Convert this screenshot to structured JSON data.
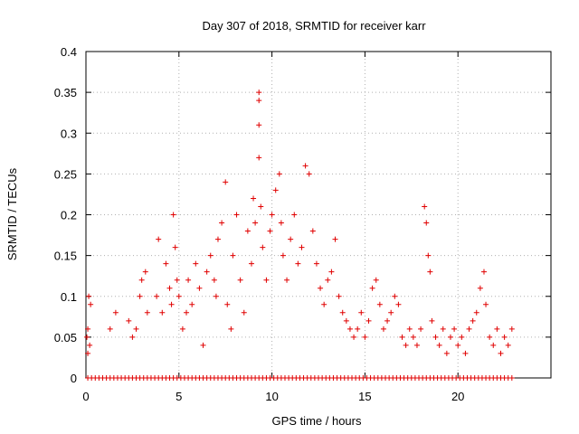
{
  "chart_data": {
    "type": "scatter",
    "title": "Day 307 of 2018, SRMTID for receiver karr",
    "xlabel": "GPS time / hours",
    "ylabel": "SRMTID / TECUs",
    "xlim": [
      0,
      25
    ],
    "ylim": [
      0,
      0.4
    ],
    "x_ticks": [
      0,
      5,
      10,
      15,
      20
    ],
    "x_tick_labels": [
      "0",
      "5",
      "10",
      "15",
      "20"
    ],
    "y_ticks": [
      0,
      0.05,
      0.1,
      0.15,
      0.2,
      0.25,
      0.3,
      0.35,
      0.4
    ],
    "y_tick_labels": [
      "0",
      "0.05",
      "0.1",
      "0.15",
      "0.2",
      "0.25",
      "0.3",
      "0.35",
      "0.4"
    ],
    "grid": true,
    "marker": "+",
    "color": "#e00000",
    "series": [
      {
        "name": "SRMTID",
        "points": [
          [
            0.05,
            0.05
          ],
          [
            0.1,
            0.06
          ],
          [
            0.15,
            0.1
          ],
          [
            0.2,
            0.04
          ],
          [
            0.25,
            0.09
          ],
          [
            0.1,
            0.03
          ],
          [
            1.3,
            0.06
          ],
          [
            1.6,
            0.08
          ],
          [
            2.3,
            0.07
          ],
          [
            2.5,
            0.05
          ],
          [
            2.7,
            0.06
          ],
          [
            2.9,
            0.1
          ],
          [
            3.0,
            0.12
          ],
          [
            3.2,
            0.13
          ],
          [
            3.3,
            0.08
          ],
          [
            3.8,
            0.1
          ],
          [
            3.9,
            0.17
          ],
          [
            4.1,
            0.08
          ],
          [
            4.3,
            0.14
          ],
          [
            4.5,
            0.11
          ],
          [
            4.6,
            0.09
          ],
          [
            4.7,
            0.2
          ],
          [
            4.8,
            0.16
          ],
          [
            4.9,
            0.12
          ],
          [
            5.0,
            0.1
          ],
          [
            5.2,
            0.06
          ],
          [
            5.4,
            0.08
          ],
          [
            5.5,
            0.12
          ],
          [
            5.7,
            0.09
          ],
          [
            5.9,
            0.14
          ],
          [
            6.1,
            0.11
          ],
          [
            6.3,
            0.04
          ],
          [
            6.5,
            0.13
          ],
          [
            6.7,
            0.15
          ],
          [
            6.9,
            0.12
          ],
          [
            7.0,
            0.1
          ],
          [
            7.1,
            0.17
          ],
          [
            7.3,
            0.19
          ],
          [
            7.5,
            0.24
          ],
          [
            7.6,
            0.09
          ],
          [
            7.8,
            0.06
          ],
          [
            7.9,
            0.15
          ],
          [
            8.1,
            0.2
          ],
          [
            8.3,
            0.12
          ],
          [
            8.5,
            0.08
          ],
          [
            8.7,
            0.18
          ],
          [
            8.9,
            0.14
          ],
          [
            9.0,
            0.22
          ],
          [
            9.1,
            0.19
          ],
          [
            9.3,
            0.35
          ],
          [
            9.3,
            0.34
          ],
          [
            9.3,
            0.31
          ],
          [
            9.3,
            0.27
          ],
          [
            9.4,
            0.21
          ],
          [
            9.5,
            0.16
          ],
          [
            9.7,
            0.12
          ],
          [
            9.9,
            0.18
          ],
          [
            10.0,
            0.2
          ],
          [
            10.2,
            0.23
          ],
          [
            10.4,
            0.25
          ],
          [
            10.5,
            0.19
          ],
          [
            10.6,
            0.15
          ],
          [
            10.8,
            0.12
          ],
          [
            11.0,
            0.17
          ],
          [
            11.2,
            0.2
          ],
          [
            11.4,
            0.14
          ],
          [
            11.6,
            0.16
          ],
          [
            11.8,
            0.26
          ],
          [
            12.0,
            0.25
          ],
          [
            12.2,
            0.18
          ],
          [
            12.4,
            0.14
          ],
          [
            12.6,
            0.11
          ],
          [
            12.8,
            0.09
          ],
          [
            13.0,
            0.12
          ],
          [
            13.2,
            0.13
          ],
          [
            13.4,
            0.17
          ],
          [
            13.6,
            0.1
          ],
          [
            13.8,
            0.08
          ],
          [
            14.0,
            0.07
          ],
          [
            14.2,
            0.06
          ],
          [
            14.4,
            0.05
          ],
          [
            14.6,
            0.06
          ],
          [
            14.8,
            0.08
          ],
          [
            15.0,
            0.05
          ],
          [
            15.2,
            0.07
          ],
          [
            15.4,
            0.11
          ],
          [
            15.6,
            0.12
          ],
          [
            15.8,
            0.09
          ],
          [
            16.0,
            0.06
          ],
          [
            16.2,
            0.07
          ],
          [
            16.4,
            0.08
          ],
          [
            16.6,
            0.1
          ],
          [
            16.8,
            0.09
          ],
          [
            17.0,
            0.05
          ],
          [
            17.2,
            0.04
          ],
          [
            17.4,
            0.06
          ],
          [
            17.6,
            0.05
          ],
          [
            17.8,
            0.04
          ],
          [
            18.0,
            0.06
          ],
          [
            18.2,
            0.21
          ],
          [
            18.3,
            0.19
          ],
          [
            18.4,
            0.15
          ],
          [
            18.5,
            0.13
          ],
          [
            18.6,
            0.07
          ],
          [
            18.8,
            0.05
          ],
          [
            19.0,
            0.04
          ],
          [
            19.2,
            0.06
          ],
          [
            19.4,
            0.03
          ],
          [
            19.6,
            0.05
          ],
          [
            19.8,
            0.06
          ],
          [
            20.0,
            0.04
          ],
          [
            20.2,
            0.05
          ],
          [
            20.4,
            0.03
          ],
          [
            20.6,
            0.06
          ],
          [
            20.8,
            0.07
          ],
          [
            21.0,
            0.08
          ],
          [
            21.2,
            0.11
          ],
          [
            21.4,
            0.13
          ],
          [
            21.5,
            0.09
          ],
          [
            21.7,
            0.05
          ],
          [
            21.9,
            0.04
          ],
          [
            22.1,
            0.06
          ],
          [
            22.3,
            0.03
          ],
          [
            22.5,
            0.05
          ],
          [
            22.7,
            0.04
          ],
          [
            22.9,
            0.06
          ]
        ],
        "zero_points": [
          0.1,
          0.3,
          0.5,
          0.7,
          0.9,
          1.1,
          1.3,
          1.5,
          1.7,
          1.9,
          2.1,
          2.3,
          2.5,
          2.7,
          2.9,
          3.1,
          3.3,
          3.5,
          3.7,
          3.9,
          4.1,
          4.3,
          4.5,
          4.7,
          4.9,
          5.1,
          5.3,
          5.5,
          5.7,
          5.9,
          6.1,
          6.3,
          6.5,
          6.7,
          6.9,
          7.1,
          7.3,
          7.5,
          7.7,
          7.9,
          8.1,
          8.3,
          8.5,
          8.7,
          8.9,
          9.1,
          9.3,
          9.5,
          9.7,
          9.9,
          10.1,
          10.3,
          10.5,
          10.7,
          10.9,
          11.1,
          11.3,
          11.5,
          11.7,
          11.9,
          12.1,
          12.3,
          12.5,
          12.7,
          12.9,
          13.1,
          13.3,
          13.5,
          13.7,
          13.9,
          14.1,
          14.3,
          14.5,
          14.7,
          14.9,
          15.1,
          15.3,
          15.5,
          15.7,
          15.9,
          16.1,
          16.3,
          16.5,
          16.7,
          16.9,
          17.1,
          17.3,
          17.5,
          17.7,
          17.9,
          18.1,
          18.3,
          18.5,
          18.7,
          18.9,
          19.1,
          19.3,
          19.5,
          19.7,
          19.9,
          20.1,
          20.3,
          20.5,
          20.7,
          20.9,
          21.1,
          21.3,
          21.5,
          21.7,
          21.9,
          22.1,
          22.3,
          22.5,
          22.7,
          22.9
        ]
      }
    ]
  }
}
